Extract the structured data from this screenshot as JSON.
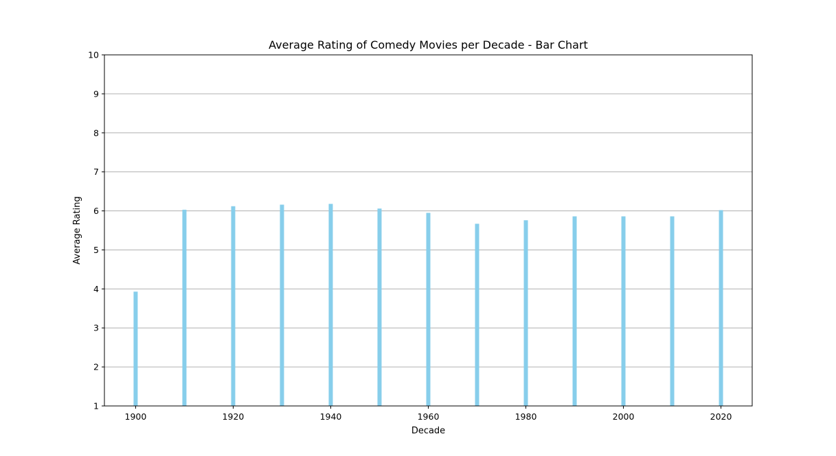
{
  "chart_data": {
    "type": "bar",
    "title": "Average Rating of Comedy Movies per Decade - Bar Chart",
    "xlabel": "Decade",
    "ylabel": "Average Rating",
    "ylim": [
      1,
      10
    ],
    "xlim": [
      1893.6,
      2026.4
    ],
    "grid": "y",
    "bar_color": "#87CEEB",
    "categories": [
      1900,
      1910,
      1920,
      1930,
      1940,
      1950,
      1960,
      1970,
      1980,
      1990,
      2000,
      2010,
      2020
    ],
    "values": [
      3.93,
      6.03,
      6.12,
      6.16,
      6.18,
      6.06,
      5.95,
      5.67,
      5.76,
      5.86,
      5.86,
      5.86,
      6.02
    ],
    "x_ticks": [
      1900,
      1920,
      1940,
      1960,
      1980,
      2000,
      2020
    ],
    "x_tick_labels": [
      "1900",
      "1920",
      "1940",
      "1960",
      "1980",
      "2000",
      "2020"
    ],
    "y_ticks": [
      1,
      2,
      3,
      4,
      5,
      6,
      7,
      8,
      9,
      10
    ],
    "y_tick_labels": [
      "1",
      "2",
      "3",
      "4",
      "5",
      "6",
      "7",
      "8",
      "9",
      "10"
    ]
  }
}
